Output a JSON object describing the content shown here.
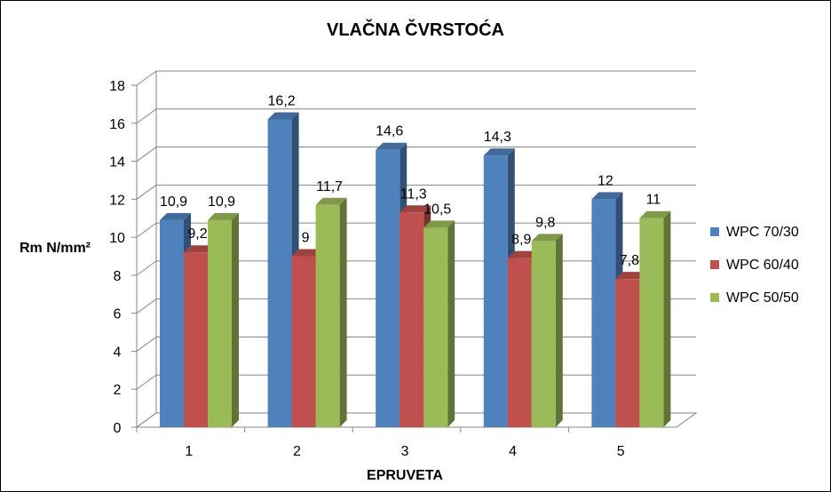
{
  "chart_data": {
    "type": "bar",
    "title": "VLAČNA ČVRSTOĆA",
    "xlabel": "EPRUVETA",
    "ylabel": "Rm N/mm²",
    "categories": [
      "1",
      "2",
      "3",
      "4",
      "5"
    ],
    "ylim": [
      0,
      18
    ],
    "yticks": [
      0,
      2,
      4,
      6,
      8,
      10,
      12,
      14,
      16,
      18
    ],
    "grid": true,
    "legend_position": "right",
    "series": [
      {
        "name": "WPC 70/30",
        "color": "#4F81BD",
        "values": [
          10.9,
          16.2,
          14.6,
          14.3,
          12
        ],
        "labels": [
          "10,9",
          "16,2",
          "14,6",
          "14,3",
          "12"
        ]
      },
      {
        "name": "WPC 60/40",
        "color": "#C0504D",
        "values": [
          9.2,
          9,
          11.3,
          8.9,
          7.8
        ],
        "labels": [
          "9,2",
          "9",
          "11,3",
          "8,9",
          "7,8"
        ]
      },
      {
        "name": "WPC 50/50",
        "color": "#9BBB59",
        "values": [
          10.9,
          11.7,
          10.5,
          9.8,
          11
        ],
        "labels": [
          "10,9",
          "11,7",
          "10,5",
          "9,8",
          "11"
        ]
      }
    ]
  }
}
